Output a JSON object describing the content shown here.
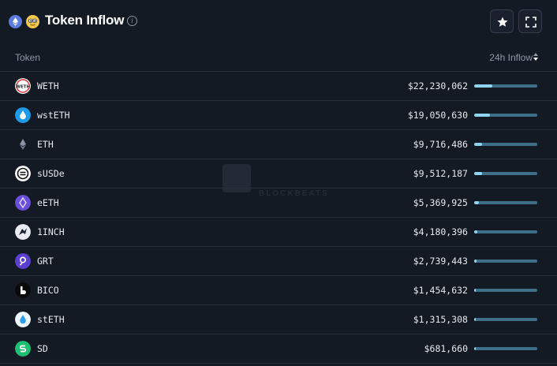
{
  "header": {
    "title": "Token Inflow",
    "chain_icon": "ethereum-icon",
    "mascot_icon": "mascot-icon",
    "info_icon": "info-icon",
    "star_icon": "star-icon",
    "expand_icon": "expand-icon",
    "info_glyph": "i"
  },
  "table": {
    "col_token": "Token",
    "col_inflow": "24h Inflow",
    "rows": [
      {
        "name": "WETH",
        "value": "$22,230,062",
        "fraction": 0.29,
        "icon": "weth-icon"
      },
      {
        "name": "wstETH",
        "value": "$19,050,630",
        "fraction": 0.25,
        "icon": "wsteth-icon"
      },
      {
        "name": "ETH",
        "value": "$9,716,486",
        "fraction": 0.13,
        "icon": "eth-icon"
      },
      {
        "name": "sUSDe",
        "value": "$9,512,187",
        "fraction": 0.12,
        "icon": "susde-icon"
      },
      {
        "name": "eETH",
        "value": "$5,369,925",
        "fraction": 0.07,
        "icon": "eeth-icon"
      },
      {
        "name": "1INCH",
        "value": "$4,180,396",
        "fraction": 0.05,
        "icon": "1inch-icon"
      },
      {
        "name": "GRT",
        "value": "$2,739,443",
        "fraction": 0.04,
        "icon": "grt-icon"
      },
      {
        "name": "BICO",
        "value": "$1,454,632",
        "fraction": 0.02,
        "icon": "bico-icon"
      },
      {
        "name": "stETH",
        "value": "$1,315,308",
        "fraction": 0.02,
        "icon": "steth-icon"
      },
      {
        "name": "SD",
        "value": "$681,660",
        "fraction": 0.01,
        "icon": "sd-icon"
      }
    ]
  },
  "colors": {
    "background": "#141a23",
    "bar_track": "#3e6f86",
    "bar_fill": "#8fd4f2",
    "text": "#e6e9ee",
    "muted": "#8f98a8"
  }
}
